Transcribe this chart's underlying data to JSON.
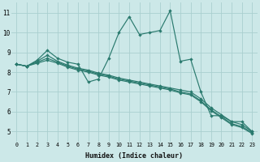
{
  "xlabel": "Humidex (Indice chaleur)",
  "xlim": [
    -0.5,
    23.5
  ],
  "ylim": [
    4.5,
    11.5
  ],
  "xticks": [
    0,
    1,
    2,
    3,
    4,
    5,
    6,
    7,
    8,
    9,
    10,
    11,
    12,
    13,
    14,
    15,
    16,
    17,
    18,
    19,
    20,
    21,
    22,
    23
  ],
  "yticks": [
    5,
    6,
    7,
    8,
    9,
    10,
    11
  ],
  "background_color": "#cce8e8",
  "line_color": "#2a7a6e",
  "grid_color": "#aacfcf",
  "line1_x": [
    0,
    1,
    2,
    3,
    4,
    5,
    6,
    7,
    8,
    9,
    10,
    11,
    12,
    13,
    14,
    15,
    16,
    17,
    18,
    19,
    20,
    21,
    22,
    23
  ],
  "line1_y": [
    8.4,
    8.3,
    8.6,
    9.1,
    8.7,
    8.5,
    8.4,
    7.5,
    7.65,
    8.7,
    10.0,
    10.8,
    9.9,
    10.0,
    10.1,
    11.1,
    8.55,
    8.65,
    7.0,
    5.8,
    5.8,
    5.5,
    5.5,
    5.0
  ],
  "line2_x": [
    0,
    1,
    2,
    3,
    4,
    5,
    6,
    7,
    8,
    9,
    10,
    11,
    12,
    13,
    14,
    15,
    16,
    17,
    18,
    19,
    20,
    21,
    22,
    23
  ],
  "line2_y": [
    8.4,
    8.3,
    8.55,
    8.85,
    8.55,
    8.35,
    8.2,
    8.1,
    7.95,
    7.85,
    7.7,
    7.6,
    7.5,
    7.4,
    7.3,
    7.2,
    7.1,
    7.0,
    6.65,
    6.2,
    5.85,
    5.5,
    5.35,
    5.0
  ],
  "line3_x": [
    0,
    1,
    2,
    3,
    4,
    5,
    6,
    7,
    8,
    9,
    10,
    11,
    12,
    13,
    14,
    15,
    16,
    17,
    18,
    19,
    20,
    21,
    22,
    23
  ],
  "line3_y": [
    8.4,
    8.3,
    8.5,
    8.7,
    8.5,
    8.3,
    8.15,
    8.05,
    7.9,
    7.8,
    7.65,
    7.55,
    7.45,
    7.35,
    7.25,
    7.15,
    7.0,
    6.9,
    6.55,
    6.1,
    5.75,
    5.4,
    5.25,
    4.95
  ],
  "line4_x": [
    0,
    1,
    2,
    3,
    4,
    5,
    6,
    7,
    8,
    9,
    10,
    11,
    12,
    13,
    14,
    15,
    16,
    17,
    18,
    19,
    20,
    21,
    22,
    23
  ],
  "line4_y": [
    8.4,
    8.3,
    8.45,
    8.6,
    8.45,
    8.25,
    8.1,
    8.0,
    7.85,
    7.75,
    7.6,
    7.5,
    7.4,
    7.3,
    7.2,
    7.1,
    6.95,
    6.85,
    6.5,
    6.05,
    5.7,
    5.35,
    5.2,
    4.9
  ]
}
